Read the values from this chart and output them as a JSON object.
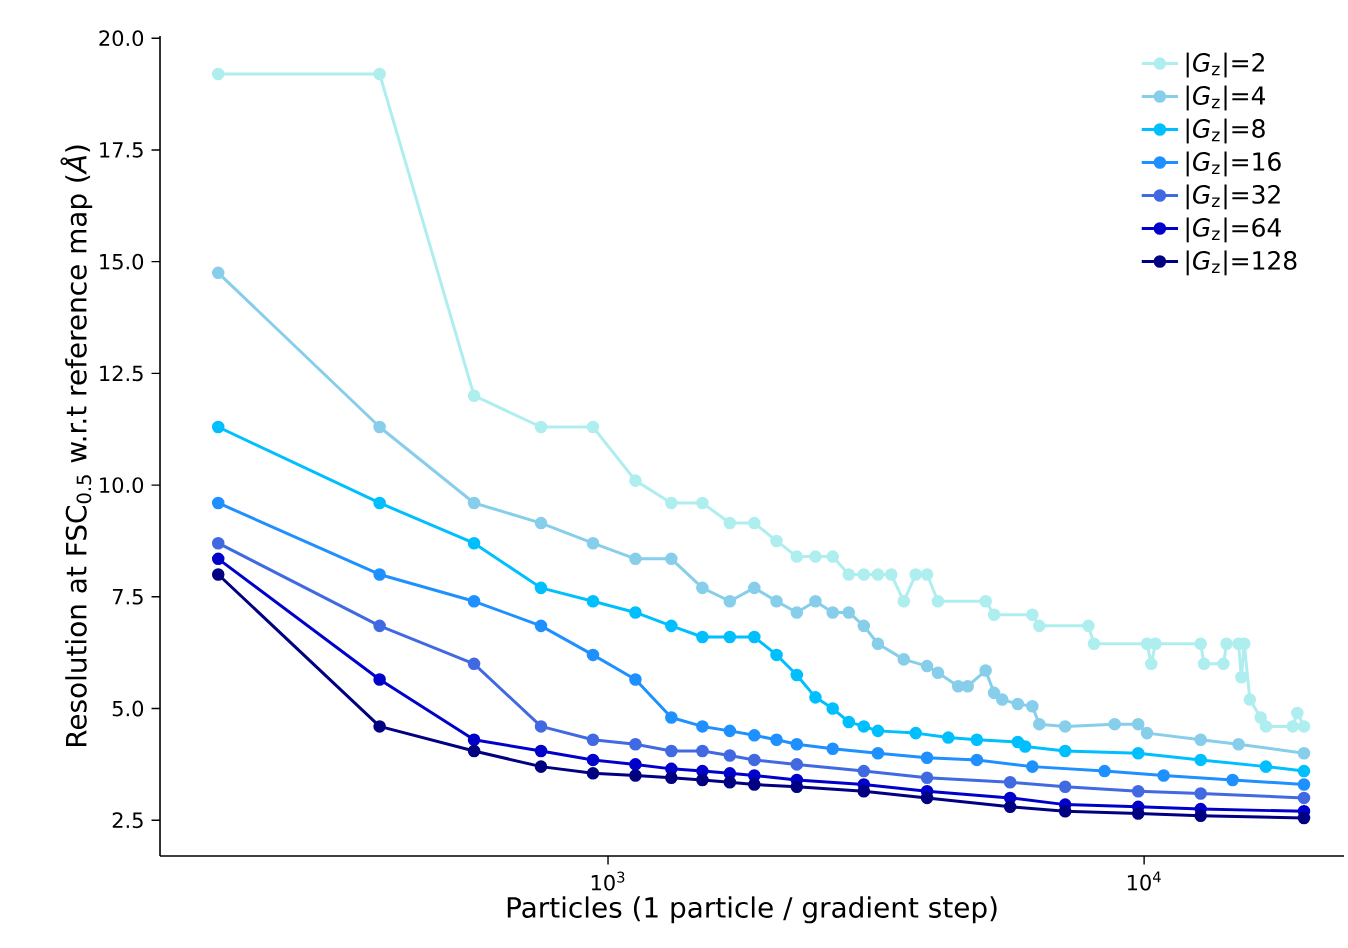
{
  "chart_data": {
    "type": "line",
    "xlabel": "Particles (1 particle / gradient step)",
    "ylabel": "Resolution at FSC$_{0.5}$ w.r.t reference map (*Å*)",
    "log": "x",
    "marker": "circle",
    "line_style": "solid",
    "legend": "top right",
    "xlim": [
      146,
      23600
    ],
    "ylim": [
      1.7,
      20.05
    ],
    "xticks": [
      {
        "value": 1000,
        "label": "10$^{3}$"
      },
      {
        "value": 10000,
        "label": "10$^{4}$"
      }
    ],
    "yticks": [
      {
        "value": 2.5,
        "label": "2.5"
      },
      {
        "value": 5,
        "label": "5.0"
      },
      {
        "value": 7.5,
        "label": "7.5"
      },
      {
        "value": 10,
        "label": "10.0"
      },
      {
        "value": 12.5,
        "label": "12.5"
      },
      {
        "value": 15,
        "label": "15.0"
      },
      {
        "value": 17.5,
        "label": "17.5"
      },
      {
        "value": 20,
        "label": "20.0"
      }
    ],
    "series": [
      {
        "name": "|*G*$_{z}$|=2",
        "color": "#afeeee",
        "x": [
          187.5,
          375,
          562.5,
          750,
          937.5,
          1125,
          1312.5,
          1500,
          1687.5,
          1875,
          2062.5,
          2250,
          2437.5,
          2625,
          2812.5,
          3000,
          3187.5,
          3375,
          3562.5,
          3750,
          3937.5,
          4125,
          5062.5,
          5250,
          6187.5,
          6375,
          7875,
          8062.5,
          10125,
          10312.5,
          10500,
          12750,
          12937.5,
          14062.5,
          14250,
          15000,
          15187.5,
          15375,
          15750,
          16500,
          16875,
          18937.5,
          19312.5,
          19875
        ],
        "values": [
          19.2,
          19.2,
          12.0,
          11.3,
          11.3,
          10.1,
          9.6,
          9.6,
          9.15,
          9.15,
          8.75,
          8.4,
          8.4,
          8.4,
          8.0,
          8.0,
          8.0,
          8.0,
          7.4,
          8.0,
          8.0,
          7.4,
          7.4,
          7.1,
          7.1,
          6.85,
          6.85,
          6.45,
          6.45,
          6.0,
          6.45,
          6.45,
          6.0,
          6.0,
          6.45,
          6.45,
          5.7,
          6.45,
          5.2,
          4.8,
          4.6,
          4.6,
          4.9,
          4.6
        ]
      },
      {
        "name": "|*G*$_{z}$|=4",
        "color": "#87ceeb",
        "x": [
          187.5,
          375,
          562.5,
          750,
          937.5,
          1125,
          1312.5,
          1500,
          1687.5,
          1875,
          2062.5,
          2250,
          2437.5,
          2625,
          2812.5,
          3000,
          3187.5,
          3562.5,
          3937.5,
          4125,
          4500,
          4687.5,
          5062.5,
          5250,
          5437.5,
          5812.5,
          6187.5,
          6375,
          7125,
          8812.5,
          9750,
          10125,
          12750,
          15000,
          19875
        ],
        "values": [
          14.75,
          11.3,
          9.6,
          9.15,
          8.7,
          8.35,
          8.35,
          7.7,
          7.4,
          7.7,
          7.4,
          7.15,
          7.4,
          7.15,
          7.15,
          6.85,
          6.45,
          6.1,
          5.95,
          5.8,
          5.5,
          5.5,
          5.85,
          5.35,
          5.2,
          5.1,
          5.05,
          4.65,
          4.6,
          4.65,
          4.65,
          4.45,
          4.3,
          4.2,
          4.0
        ]
      },
      {
        "name": "|*G*$_{z}$|=8",
        "color": "#00bfff",
        "x": [
          187.5,
          375,
          562.5,
          750,
          937.5,
          1125,
          1312.5,
          1500,
          1687.5,
          1875,
          2062.5,
          2250,
          2437.5,
          2625,
          2812.5,
          3000,
          3187.5,
          3750,
          4312.5,
          4875,
          5812.5,
          6000,
          7125,
          9750,
          12750,
          16875,
          19875
        ],
        "values": [
          11.3,
          9.6,
          8.7,
          7.7,
          7.4,
          7.15,
          6.85,
          6.6,
          6.6,
          6.6,
          6.2,
          5.75,
          5.25,
          5.0,
          4.7,
          4.6,
          4.5,
          4.45,
          4.35,
          4.3,
          4.25,
          4.15,
          4.05,
          4.0,
          3.85,
          3.7,
          3.6
        ]
      },
      {
        "name": "|*G*$_{z}$|=16",
        "color": "#1e90ff",
        "x": [
          187.5,
          375,
          562.5,
          750,
          937.5,
          1125,
          1312.5,
          1500,
          1687.5,
          1875,
          2062.5,
          2250,
          2625,
          3187.5,
          3937.5,
          4875,
          6187.5,
          8437.5,
          10875,
          14625,
          19875
        ],
        "values": [
          9.6,
          8.0,
          7.4,
          6.85,
          6.2,
          5.65,
          4.8,
          4.6,
          4.5,
          4.4,
          4.3,
          4.2,
          4.1,
          4.0,
          3.9,
          3.85,
          3.7,
          3.6,
          3.5,
          3.4,
          3.3
        ]
      },
      {
        "name": "|*G*$_{z}$|=32",
        "color": "#4169e1",
        "x": [
          187.5,
          375,
          562.5,
          750,
          937.5,
          1125,
          1312.5,
          1500,
          1687.5,
          1875,
          2250,
          3000,
          3937.5,
          5625,
          7125,
          9750,
          12750,
          19875
        ],
        "values": [
          8.7,
          6.85,
          6.0,
          4.6,
          4.3,
          4.2,
          4.05,
          4.05,
          3.95,
          3.85,
          3.75,
          3.6,
          3.45,
          3.35,
          3.25,
          3.15,
          3.1,
          3.0
        ]
      },
      {
        "name": "|*G*$_{z}$|=64",
        "color": "#0000cd",
        "x": [
          187.5,
          375,
          562.5,
          750,
          937.5,
          1125,
          1312.5,
          1500,
          1687.5,
          1875,
          2250,
          3000,
          3937.5,
          5625,
          7125,
          9750,
          12750,
          19875
        ],
        "values": [
          8.35,
          5.65,
          4.3,
          4.05,
          3.85,
          3.75,
          3.65,
          3.6,
          3.55,
          3.5,
          3.4,
          3.3,
          3.15,
          3.0,
          2.85,
          2.8,
          2.75,
          2.7
        ]
      },
      {
        "name": "|*G*$_{z}$|=128",
        "color": "#000080",
        "x": [
          187.5,
          375,
          562.5,
          750,
          937.5,
          1125,
          1312.5,
          1500,
          1687.5,
          1875,
          2250,
          3000,
          3937.5,
          5625,
          7125,
          9750,
          12750,
          19875
        ],
        "values": [
          8.0,
          4.6,
          4.05,
          3.7,
          3.55,
          3.5,
          3.45,
          3.4,
          3.35,
          3.3,
          3.25,
          3.15,
          3.0,
          2.8,
          2.7,
          2.65,
          2.6,
          2.55
        ]
      }
    ]
  }
}
